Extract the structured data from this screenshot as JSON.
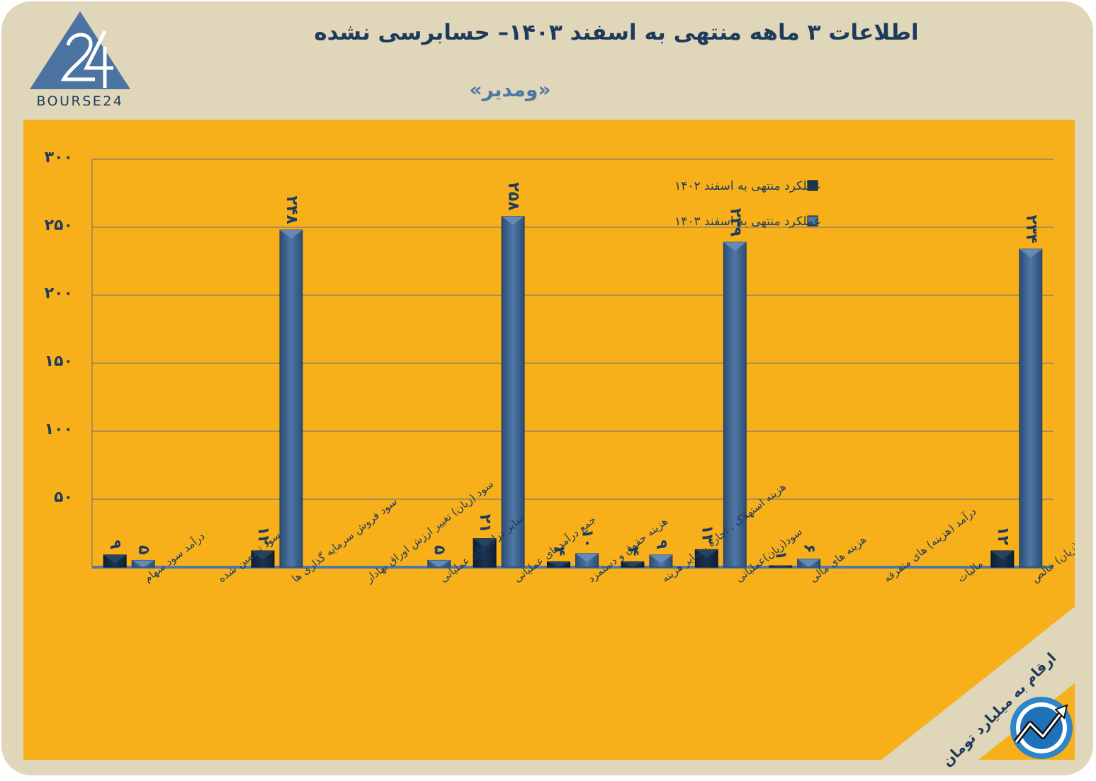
{
  "header": {
    "title": "اطلاعات ۳ ماهه منتهی به اسفند ۱۴۰۳– حسابرسی نشده",
    "subtitle": "«ومدیر»",
    "logo_text": "BOURSE24"
  },
  "note": "ارقام به میلیارد تومان",
  "colors": {
    "background": "#e0d6b9",
    "panel": "#f7b01a",
    "series_1402": "#1a3550",
    "series_1403": "#4f77a6",
    "text": "#1f3b5c"
  },
  "icons": [
    "bourse24-logo",
    "trend-arrow-icon"
  ],
  "chart_data": {
    "type": "bar",
    "title": "",
    "xlabel": "",
    "ylabel": "",
    "ylim": [
      0,
      300
    ],
    "yticks": [
      "۵۰",
      "۱۰۰",
      "۱۵۰",
      "۲۰۰",
      "۲۵۰",
      "۳۰۰"
    ],
    "ytick_values": [
      50,
      100,
      150,
      200,
      250,
      300
    ],
    "grid": true,
    "legend_position": "top-right",
    "categories": [
      "درآمد سود سهام",
      "سود تضمین شده",
      "سود فروش سرمایه گذاری ها",
      "سود (زیان) تغییر ارزش اوراق بهادار",
      "سایر درامدهای عملیاتی",
      "جمع درآمدهای عملیاتی",
      "هزینه حقوق و دستمزد",
      "هزینه استهلاک ، اجاره ، سایر هزینه",
      "سود(زیان)عملیاتی",
      "هزینه های مالی",
      "درآمد (هزینه) های متفرقه",
      "مالیات",
      "سود(زیان) خالص"
    ],
    "series": [
      {
        "name": "عملکرد منتهی به اسفند ۱۴۰۲",
        "values": [
          9,
          0,
          12,
          0,
          0,
          21,
          4,
          4,
          13,
          1,
          0,
          0,
          12
        ],
        "labels": [
          "۹",
          "",
          "۱۲",
          "",
          "",
          "۲۱",
          "۴",
          "۴",
          "۱۳",
          "۱",
          "",
          "",
          "۱۲"
        ]
      },
      {
        "name": "عملکرد منتهی به اسفند ۱۴۰۳",
        "values": [
          5,
          0,
          248,
          0,
          5,
          258,
          10,
          9,
          239,
          6,
          0,
          0,
          234
        ],
        "labels": [
          "۵",
          "",
          "۲۴۸",
          "",
          "۵",
          "۲۵۸",
          "۱۰",
          "۹",
          "۲۳۹",
          "۶",
          "",
          "",
          "۲۳۴"
        ]
      }
    ]
  }
}
